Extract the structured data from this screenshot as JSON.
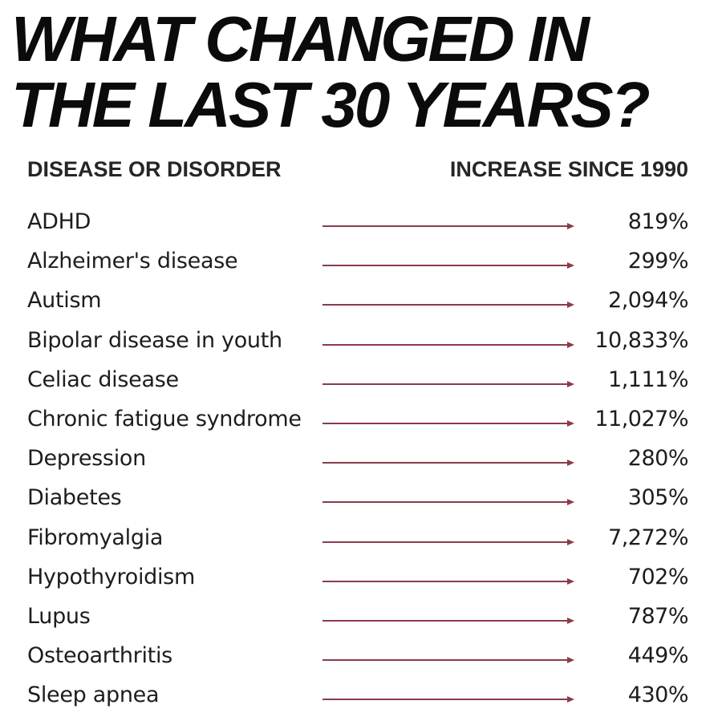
{
  "title": {
    "line1": "WHAT CHANGED IN",
    "line2": "THE LAST 30 YEARS?"
  },
  "table": {
    "header_left": "DISEASE OR DISORDER",
    "header_right": "INCREASE SINCE 1990",
    "arrow_color": "#8a3c4a",
    "rows": [
      {
        "label": "ADHD",
        "value": "819%"
      },
      {
        "label": "Alzheimer's disease",
        "value": "299%"
      },
      {
        "label": "Autism",
        "value": "2,094%"
      },
      {
        "label": "Bipolar disease in youth",
        "value": "10,833%"
      },
      {
        "label": "Celiac disease",
        "value": "1,111%"
      },
      {
        "label": "Chronic fatigue syndrome",
        "value": "11,027%"
      },
      {
        "label": "Depression",
        "value": "280%"
      },
      {
        "label": "Diabetes",
        "value": "305%"
      },
      {
        "label": "Fibromyalgia",
        "value": "7,272%"
      },
      {
        "label": "Hypothyroidism",
        "value": "702%"
      },
      {
        "label": "Lupus",
        "value": "787%"
      },
      {
        "label": "Osteoarthritis",
        "value": "449%"
      },
      {
        "label": "Sleep apnea",
        "value": "430%"
      }
    ]
  }
}
